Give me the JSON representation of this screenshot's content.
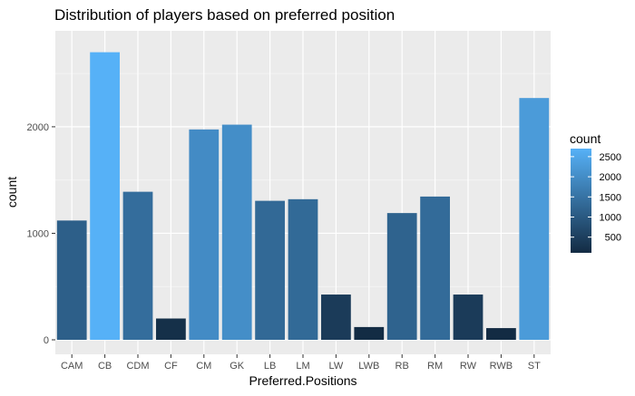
{
  "chart_data": {
    "type": "bar",
    "title": "Distribution of players based on preferred position",
    "xlabel": "Preferred.Positions",
    "ylabel": "count",
    "categories": [
      "CAM",
      "CB",
      "CDM",
      "CF",
      "CM",
      "GK",
      "LB",
      "LM",
      "LW",
      "LWB",
      "RB",
      "RM",
      "RW",
      "RWB",
      "ST"
    ],
    "values": [
      1120,
      2700,
      1390,
      200,
      1975,
      2020,
      1305,
      1320,
      425,
      120,
      1190,
      1345,
      425,
      110,
      2270
    ],
    "ylim": [
      0,
      2850
    ],
    "yticks": [
      0,
      1000,
      2000
    ],
    "grid": true,
    "legend": {
      "title": "count",
      "position": "right",
      "ticks": [
        500,
        1000,
        1500,
        2000,
        2500
      ],
      "range": [
        110,
        2700
      ],
      "color_low": "#132B43",
      "color_high": "#56B1F7"
    },
    "panel_background": "#EBEBEB"
  }
}
